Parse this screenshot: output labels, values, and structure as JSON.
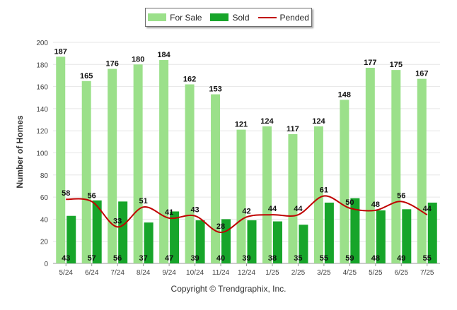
{
  "chart_data": {
    "type": "bar",
    "categories": [
      "5/24",
      "6/24",
      "7/24",
      "8/24",
      "9/24",
      "10/24",
      "11/24",
      "12/24",
      "1/25",
      "2/25",
      "3/25",
      "4/25",
      "5/25",
      "6/25",
      "7/25"
    ],
    "series": [
      {
        "name": "For Sale",
        "kind": "bar",
        "color": "#9be08a",
        "values": [
          187,
          165,
          176,
          180,
          184,
          162,
          153,
          121,
          124,
          117,
          124,
          148,
          177,
          175,
          167
        ]
      },
      {
        "name": "Sold",
        "kind": "bar",
        "color": "#17a52a",
        "values": [
          43,
          57,
          56,
          37,
          47,
          39,
          40,
          39,
          38,
          35,
          55,
          59,
          48,
          49,
          55
        ]
      },
      {
        "name": "Pended",
        "kind": "line",
        "color": "#c00000",
        "values": [
          58,
          56,
          33,
          51,
          41,
          43,
          28,
          42,
          44,
          44,
          61,
          50,
          48,
          56,
          44
        ]
      }
    ],
    "ylabel": "Number of Homes",
    "xlabel": "",
    "ylim": [
      0,
      200
    ],
    "yticks": [
      0,
      20,
      40,
      60,
      80,
      100,
      120,
      140,
      160,
      180,
      200
    ],
    "grid": true,
    "legend": "top-center"
  },
  "footer": {
    "copyright": "Copyright © Trendgraphix, Inc."
  }
}
